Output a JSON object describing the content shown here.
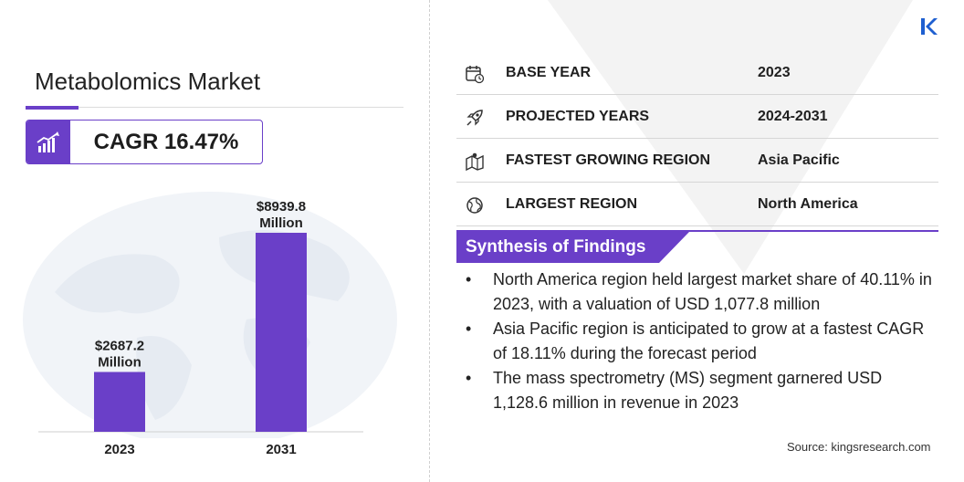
{
  "title": "Metabolomics Market",
  "cagr": {
    "text": "CAGR 16.47%"
  },
  "chart_data": {
    "type": "bar",
    "categories": [
      "2023",
      "2031"
    ],
    "values": [
      2687.2,
      8939.8
    ],
    "value_labels": [
      [
        "$2687.2",
        "Million"
      ],
      [
        "$8939.8",
        "Million"
      ]
    ],
    "title": "",
    "xlabel": "",
    "ylabel": "",
    "bar_color": "#6a3fc8",
    "grid": false
  },
  "info_rows": [
    {
      "icon": "calendar-icon",
      "label": "BASE YEAR",
      "value": "2023"
    },
    {
      "icon": "rocket-icon",
      "label": "PROJECTED YEARS",
      "value": "2024-2031"
    },
    {
      "icon": "region-map-icon",
      "label": "FASTEST GROWING REGION",
      "value": "Asia Pacific"
    },
    {
      "icon": "globe-icon",
      "label": "LARGEST REGION",
      "value": "North America"
    }
  ],
  "synthesis": {
    "title": "Synthesis of Findings",
    "bullet": "•",
    "items": [
      "North America region held largest market share of 40.11% in 2023, with a valuation of USD 1,077.8 million",
      "Asia Pacific region is anticipated to grow at a fastest CAGR of 18.11% during the forecast period",
      "The mass spectrometry (MS) segment garnered USD 1,128.6 million in revenue in 2023"
    ]
  },
  "source": "Source:  kingsresearch.com",
  "colors": {
    "accent": "#6a3fc8",
    "text": "#1f1f1f",
    "logo": "#1e5fd0"
  }
}
